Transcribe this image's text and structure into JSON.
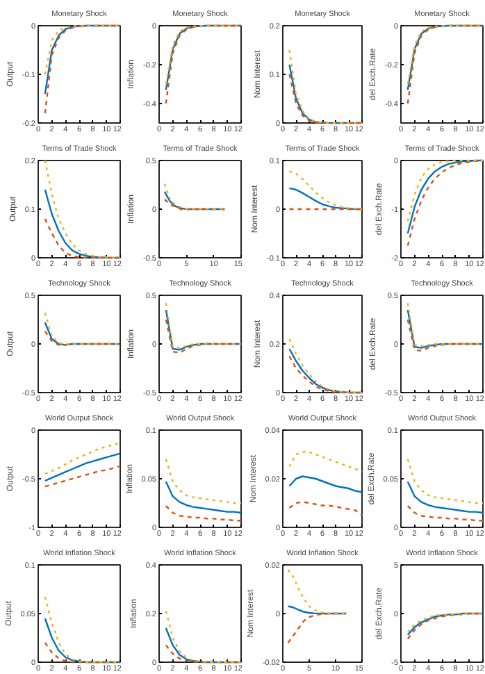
{
  "chart_data": [
    {
      "type": "line",
      "title": "Monetary Shock",
      "ylabel": "Output",
      "x": [
        1,
        2,
        3,
        4,
        5,
        6,
        7,
        8,
        9,
        10,
        11,
        12
      ],
      "xlim": [
        0,
        12
      ],
      "xticks": [
        0,
        2,
        4,
        6,
        8,
        10,
        12
      ],
      "ylim": [
        -0.2,
        0
      ],
      "yticks": [
        -0.2,
        -0.1,
        0
      ],
      "series": [
        {
          "color": "#0072bd",
          "line_style": "solid",
          "values": [
            -0.14,
            -0.05,
            -0.02,
            -0.007,
            -0.002,
            -0.001,
            0,
            0,
            0,
            0,
            0,
            0
          ]
        },
        {
          "color": "#d95319",
          "line_style": "dashed",
          "values": [
            -0.18,
            -0.06,
            -0.025,
            -0.01,
            -0.004,
            -0.001,
            0,
            0,
            0,
            0,
            0,
            0
          ]
        },
        {
          "color": "#edb120",
          "line_style": "dashed",
          "values": [
            -0.1,
            -0.03,
            -0.01,
            -0.003,
            -0.001,
            0,
            0,
            0,
            0,
            0,
            0,
            0
          ]
        }
      ]
    },
    {
      "type": "line",
      "title": "Monetary Shock",
      "ylabel": "Inflation",
      "x": [
        1,
        2,
        3,
        4,
        5,
        6,
        7,
        8,
        9,
        10,
        11,
        12
      ],
      "xlim": [
        0,
        12
      ],
      "xticks": [
        0,
        2,
        4,
        6,
        8,
        10,
        12
      ],
      "ylim": [
        -0.5,
        0
      ],
      "yticks": [
        -0.4,
        -0.2,
        0
      ],
      "series": [
        {
          "color": "#0072bd",
          "line_style": "solid",
          "values": [
            -0.33,
            -0.12,
            -0.04,
            -0.015,
            -0.005,
            -0.002,
            0,
            0,
            0,
            0,
            0,
            0
          ]
        },
        {
          "color": "#d95319",
          "line_style": "dashed",
          "values": [
            -0.4,
            -0.14,
            -0.05,
            -0.02,
            -0.007,
            -0.002,
            0,
            0,
            0,
            0,
            0,
            0
          ]
        },
        {
          "color": "#edb120",
          "line_style": "dashed",
          "values": [
            -0.3,
            -0.1,
            -0.03,
            -0.01,
            -0.003,
            -0.001,
            0,
            0,
            0,
            0,
            0,
            0
          ]
        }
      ]
    },
    {
      "type": "line",
      "title": "Monetary Shock",
      "ylabel": "Nom Interest",
      "x": [
        1,
        2,
        3,
        4,
        5,
        6,
        7,
        8,
        9,
        10,
        11,
        12
      ],
      "xlim": [
        0,
        12
      ],
      "xticks": [
        0,
        2,
        4,
        6,
        8,
        10,
        12
      ],
      "ylim": [
        0,
        0.2
      ],
      "yticks": [
        0,
        0.1,
        0.2
      ],
      "series": [
        {
          "color": "#0072bd",
          "line_style": "solid",
          "values": [
            0.12,
            0.05,
            0.02,
            0.007,
            0.002,
            0.001,
            0,
            0,
            0,
            0,
            0,
            0
          ]
        },
        {
          "color": "#d95319",
          "line_style": "dashed",
          "values": [
            0.1,
            0.04,
            0.015,
            0.005,
            0.001,
            0,
            0,
            0,
            0,
            0,
            0,
            0
          ]
        },
        {
          "color": "#edb120",
          "line_style": "dashed",
          "values": [
            0.15,
            0.06,
            0.025,
            0.008,
            0.003,
            0.001,
            0,
            0,
            0,
            0,
            0,
            0
          ]
        }
      ]
    },
    {
      "type": "line",
      "title": "Monetary Shock",
      "ylabel": "del Exch.Rate",
      "x": [
        1,
        2,
        3,
        4,
        5,
        6,
        7,
        8,
        9,
        10,
        11,
        12
      ],
      "xlim": [
        0,
        12
      ],
      "xticks": [
        0,
        2,
        4,
        6,
        8,
        10,
        12
      ],
      "ylim": [
        -0.5,
        0
      ],
      "yticks": [
        -0.4,
        -0.2,
        0
      ],
      "series": [
        {
          "color": "#0072bd",
          "line_style": "solid",
          "values": [
            -0.33,
            -0.12,
            -0.04,
            -0.015,
            -0.005,
            -0.002,
            0,
            0,
            0,
            0,
            0,
            0
          ]
        },
        {
          "color": "#d95319",
          "line_style": "dashed",
          "values": [
            -0.4,
            -0.14,
            -0.05,
            -0.02,
            -0.007,
            -0.002,
            0,
            0,
            0,
            0,
            0,
            0
          ]
        },
        {
          "color": "#edb120",
          "line_style": "dashed",
          "values": [
            -0.3,
            -0.1,
            -0.03,
            -0.01,
            -0.003,
            -0.001,
            0,
            0,
            0,
            0,
            0,
            0
          ]
        }
      ]
    },
    {
      "type": "line",
      "title": "Terms of Trade Shock",
      "ylabel": "Output",
      "x": [
        1,
        2,
        3,
        4,
        5,
        6,
        7,
        8,
        9,
        10,
        11,
        12
      ],
      "xlim": [
        0,
        12
      ],
      "xticks": [
        0,
        2,
        4,
        6,
        8,
        10,
        12
      ],
      "ylim": [
        0,
        0.2
      ],
      "yticks": [
        0,
        0.1,
        0.2
      ],
      "series": [
        {
          "color": "#0072bd",
          "line_style": "solid",
          "values": [
            0.14,
            0.09,
            0.055,
            0.03,
            0.015,
            0.008,
            0.004,
            0.002,
            0.001,
            0,
            0,
            0
          ]
        },
        {
          "color": "#d95319",
          "line_style": "dashed",
          "values": [
            0.08,
            0.05,
            0.025,
            0.01,
            0.004,
            0.001,
            0,
            0,
            0,
            0,
            0,
            0
          ]
        },
        {
          "color": "#edb120",
          "line_style": "dashed",
          "values": [
            0.2,
            0.13,
            0.08,
            0.05,
            0.028,
            0.015,
            0.008,
            0.004,
            0.002,
            0.001,
            0,
            0
          ]
        }
      ]
    },
    {
      "type": "line",
      "title": "Terms of Trade Shock",
      "ylabel": "Inflation",
      "x": [
        1,
        2,
        3,
        4,
        5,
        6,
        7,
        8,
        9,
        10,
        11,
        12
      ],
      "xlim": [
        0,
        15
      ],
      "xticks": [
        0,
        5,
        10,
        15
      ],
      "ylim": [
        -0.5,
        0.5
      ],
      "yticks": [
        -0.5,
        0,
        0.5
      ],
      "series": [
        {
          "color": "#0072bd",
          "line_style": "solid",
          "values": [
            0.18,
            0.08,
            0.03,
            0.01,
            0,
            0,
            0,
            0,
            0,
            0,
            0,
            0
          ]
        },
        {
          "color": "#d95319",
          "line_style": "dashed",
          "values": [
            0.1,
            0.05,
            0.02,
            0,
            0,
            0,
            0,
            0,
            0,
            0,
            0,
            0
          ]
        },
        {
          "color": "#edb120",
          "line_style": "dashed",
          "values": [
            0.26,
            0.1,
            0.04,
            0.02,
            0,
            0,
            0,
            0,
            0,
            0,
            0,
            0
          ]
        }
      ]
    },
    {
      "type": "line",
      "title": "Terms of Trade Shock",
      "ylabel": "Nom Interest",
      "x": [
        1,
        2,
        3,
        4,
        5,
        6,
        7,
        8,
        9,
        10,
        11,
        12
      ],
      "xlim": [
        0,
        12
      ],
      "xticks": [
        0,
        2,
        4,
        6,
        8,
        10,
        12
      ],
      "ylim": [
        -0.1,
        0.1
      ],
      "yticks": [
        -0.1,
        0,
        0.1
      ],
      "series": [
        {
          "color": "#0072bd",
          "line_style": "solid",
          "values": [
            0.043,
            0.04,
            0.033,
            0.025,
            0.017,
            0.01,
            0.006,
            0.003,
            0.002,
            0.001,
            0,
            0
          ]
        },
        {
          "color": "#d95319",
          "line_style": "dashed",
          "values": [
            0,
            0,
            0,
            0,
            0,
            0,
            0,
            0,
            0,
            0,
            0,
            0
          ]
        },
        {
          "color": "#edb120",
          "line_style": "dashed",
          "values": [
            0.078,
            0.073,
            0.062,
            0.048,
            0.034,
            0.023,
            0.014,
            0.008,
            0.004,
            0.002,
            0.001,
            0
          ]
        }
      ]
    },
    {
      "type": "line",
      "title": "Terms of Trade Shock",
      "ylabel": "del Exch.Rate",
      "x": [
        1,
        2,
        3,
        4,
        5,
        6,
        7,
        8,
        9,
        10,
        11,
        12
      ],
      "xlim": [
        0,
        12
      ],
      "xticks": [
        0,
        2,
        4,
        6,
        8,
        10,
        12
      ],
      "ylim": [
        -2,
        0
      ],
      "yticks": [
        -2,
        -1,
        0
      ],
      "series": [
        {
          "color": "#0072bd",
          "line_style": "solid",
          "values": [
            -1.5,
            -0.95,
            -0.6,
            -0.37,
            -0.22,
            -0.13,
            -0.07,
            -0.04,
            -0.02,
            -0.01,
            0,
            0
          ]
        },
        {
          "color": "#d95319",
          "line_style": "dashed",
          "values": [
            -1.75,
            -1.2,
            -0.82,
            -0.55,
            -0.37,
            -0.24,
            -0.15,
            -0.09,
            -0.05,
            -0.03,
            -0.01,
            0
          ]
        },
        {
          "color": "#edb120",
          "line_style": "dashed",
          "values": [
            -1.25,
            -0.7,
            -0.35,
            -0.17,
            -0.08,
            -0.03,
            -0.01,
            0,
            0,
            0,
            0,
            0
          ]
        }
      ]
    },
    {
      "type": "line",
      "title": "Technology Shock",
      "ylabel": "Output",
      "x": [
        1,
        2,
        3,
        4,
        5,
        6,
        7,
        8,
        9,
        10,
        11,
        12
      ],
      "xlim": [
        0,
        12
      ],
      "xticks": [
        0,
        2,
        4,
        6,
        8,
        10,
        12
      ],
      "ylim": [
        -0.5,
        0.5
      ],
      "yticks": [
        -0.5,
        0,
        0.5
      ],
      "series": [
        {
          "color": "#0072bd",
          "line_style": "solid",
          "values": [
            0.22,
            0.05,
            0,
            -0.01,
            0,
            0,
            0,
            0,
            0,
            0,
            0,
            0
          ]
        },
        {
          "color": "#d95319",
          "line_style": "dashed",
          "values": [
            0.13,
            0.03,
            -0.01,
            -0.01,
            0,
            0,
            0,
            0,
            0,
            0,
            0,
            0
          ]
        },
        {
          "color": "#edb120",
          "line_style": "dashed",
          "values": [
            0.32,
            0.08,
            0.01,
            0,
            0,
            0,
            0,
            0,
            0,
            0,
            0,
            0
          ]
        }
      ]
    },
    {
      "type": "line",
      "title": "Technology Shock",
      "ylabel": "Inflation",
      "x": [
        1,
        2,
        3,
        4,
        5,
        6,
        7,
        8,
        9,
        10,
        11,
        12
      ],
      "xlim": [
        0,
        12
      ],
      "xticks": [
        0,
        2,
        4,
        6,
        8,
        10,
        12
      ],
      "ylim": [
        -0.5,
        0.5
      ],
      "yticks": [
        -0.5,
        0,
        0.5
      ],
      "series": [
        {
          "color": "#0072bd",
          "line_style": "solid",
          "values": [
            0.35,
            -0.05,
            -0.06,
            -0.03,
            -0.01,
            0,
            0,
            0,
            0,
            0,
            0,
            0
          ]
        },
        {
          "color": "#d95319",
          "line_style": "dashed",
          "values": [
            0.25,
            -0.08,
            -0.09,
            -0.05,
            -0.02,
            -0.01,
            0,
            0,
            0,
            0,
            0,
            0
          ]
        },
        {
          "color": "#edb120",
          "line_style": "dashed",
          "values": [
            0.42,
            -0.03,
            -0.04,
            -0.02,
            0,
            0,
            0,
            0,
            0,
            0,
            0,
            0
          ]
        }
      ]
    },
    {
      "type": "line",
      "title": "Technology Shock",
      "ylabel": "Nom Interest",
      "x": [
        1,
        2,
        3,
        4,
        5,
        6,
        7,
        8,
        9,
        10,
        11,
        12
      ],
      "xlim": [
        0,
        12
      ],
      "xticks": [
        0,
        2,
        4,
        6,
        8,
        10,
        12
      ],
      "ylim": [
        0,
        0.4
      ],
      "yticks": [
        0,
        0.2,
        0.4
      ],
      "series": [
        {
          "color": "#0072bd",
          "line_style": "solid",
          "values": [
            0.18,
            0.13,
            0.09,
            0.06,
            0.035,
            0.02,
            0.01,
            0.005,
            0.002,
            0,
            0,
            0
          ]
        },
        {
          "color": "#d95319",
          "line_style": "dashed",
          "values": [
            0.15,
            0.1,
            0.07,
            0.045,
            0.025,
            0.013,
            0.006,
            0.003,
            0.001,
            0,
            0,
            0
          ]
        },
        {
          "color": "#edb120",
          "line_style": "dashed",
          "values": [
            0.22,
            0.16,
            0.11,
            0.075,
            0.045,
            0.025,
            0.013,
            0.006,
            0.003,
            0.001,
            0,
            0
          ]
        }
      ]
    },
    {
      "type": "line",
      "title": "Technology Shock",
      "ylabel": "del Exch.Rate",
      "x": [
        1,
        2,
        3,
        4,
        5,
        6,
        7,
        8,
        9,
        10,
        11,
        12
      ],
      "xlim": [
        0,
        12
      ],
      "xticks": [
        0,
        2,
        4,
        6,
        8,
        10,
        12
      ],
      "ylim": [
        -0.5,
        0.5
      ],
      "yticks": [
        -0.5,
        0,
        0.5
      ],
      "series": [
        {
          "color": "#0072bd",
          "line_style": "solid",
          "values": [
            0.35,
            -0.03,
            -0.04,
            -0.02,
            -0.01,
            0,
            0,
            0,
            0,
            0,
            0,
            0
          ]
        },
        {
          "color": "#d95319",
          "line_style": "dashed",
          "values": [
            0.25,
            -0.06,
            -0.07,
            -0.04,
            -0.02,
            -0.01,
            0,
            0,
            0,
            0,
            0,
            0
          ]
        },
        {
          "color": "#edb120",
          "line_style": "dashed",
          "values": [
            0.42,
            -0.01,
            -0.02,
            -0.01,
            0,
            0,
            0,
            0,
            0,
            0,
            0,
            0
          ]
        }
      ]
    },
    {
      "type": "line",
      "title": "World Output Shock",
      "ylabel": "Output",
      "x": [
        1,
        2,
        3,
        4,
        5,
        6,
        7,
        8,
        9,
        10,
        11,
        12
      ],
      "xlim": [
        0,
        12
      ],
      "xticks": [
        0,
        2,
        4,
        6,
        8,
        10,
        12
      ],
      "ylim": [
        -1,
        0
      ],
      "yticks": [
        -1,
        -0.5,
        0
      ],
      "series": [
        {
          "color": "#0072bd",
          "line_style": "solid",
          "values": [
            -0.52,
            -0.49,
            -0.46,
            -0.43,
            -0.4,
            -0.37,
            -0.34,
            -0.32,
            -0.3,
            -0.28,
            -0.26,
            -0.24
          ]
        },
        {
          "color": "#d95319",
          "line_style": "dashed",
          "values": [
            -0.58,
            -0.56,
            -0.54,
            -0.52,
            -0.5,
            -0.48,
            -0.46,
            -0.44,
            -0.42,
            -0.41,
            -0.39,
            -0.37
          ]
        },
        {
          "color": "#edb120",
          "line_style": "dashed",
          "values": [
            -0.45,
            -0.42,
            -0.39,
            -0.35,
            -0.31,
            -0.28,
            -0.25,
            -0.22,
            -0.19,
            -0.17,
            -0.15,
            -0.13
          ]
        }
      ]
    },
    {
      "type": "line",
      "title": "World Output Shock",
      "ylabel": "Inflation",
      "x": [
        1,
        2,
        3,
        4,
        5,
        6,
        7,
        8,
        9,
        10,
        11,
        12
      ],
      "xlim": [
        0,
        12
      ],
      "xticks": [
        0,
        2,
        4,
        6,
        8,
        10,
        12
      ],
      "ylim": [
        0,
        0.1
      ],
      "yticks": [
        0,
        0.05,
        0.1
      ],
      "series": [
        {
          "color": "#0072bd",
          "line_style": "solid",
          "values": [
            0.047,
            0.032,
            0.026,
            0.023,
            0.021,
            0.02,
            0.019,
            0.018,
            0.017,
            0.016,
            0.016,
            0.015
          ]
        },
        {
          "color": "#d95319",
          "line_style": "dashed",
          "values": [
            0.022,
            0.015,
            0.012,
            0.011,
            0.01,
            0.01,
            0.009,
            0.009,
            0.008,
            0.008,
            0.007,
            0.007
          ]
        },
        {
          "color": "#edb120",
          "line_style": "dashed",
          "values": [
            0.07,
            0.047,
            0.038,
            0.033,
            0.031,
            0.03,
            0.029,
            0.028,
            0.027,
            0.026,
            0.025,
            0.025
          ]
        }
      ]
    },
    {
      "type": "line",
      "title": "World Output Shock",
      "ylabel": "Nom Interest",
      "x": [
        1,
        2,
        3,
        4,
        5,
        6,
        7,
        8,
        9,
        10,
        11,
        12
      ],
      "xlim": [
        0,
        12
      ],
      "xticks": [
        0,
        2,
        4,
        6,
        8,
        10,
        12
      ],
      "ylim": [
        0,
        0.04
      ],
      "yticks": [
        0,
        0.02,
        0.04
      ],
      "series": [
        {
          "color": "#0072bd",
          "line_style": "solid",
          "values": [
            0.017,
            0.02,
            0.021,
            0.0205,
            0.02,
            0.019,
            0.018,
            0.017,
            0.0165,
            0.016,
            0.015,
            0.0145
          ]
        },
        {
          "color": "#d95319",
          "line_style": "dashed",
          "values": [
            0.008,
            0.01,
            0.0105,
            0.01,
            0.0095,
            0.009,
            0.009,
            0.0085,
            0.008,
            0.0075,
            0.007,
            0.005
          ]
        },
        {
          "color": "#edb120",
          "line_style": "dashed",
          "values": [
            0.025,
            0.03,
            0.031,
            0.031,
            0.03,
            0.029,
            0.028,
            0.027,
            0.026,
            0.025,
            0.024,
            0.023
          ]
        }
      ]
    },
    {
      "type": "line",
      "title": "World Output Shock",
      "ylabel": "del Exch.Rate",
      "x": [
        1,
        2,
        3,
        4,
        5,
        6,
        7,
        8,
        9,
        10,
        11,
        12
      ],
      "xlim": [
        0,
        12
      ],
      "xticks": [
        0,
        2,
        4,
        6,
        8,
        10,
        12
      ],
      "ylim": [
        0,
        0.1
      ],
      "yticks": [
        0,
        0.05,
        0.1
      ],
      "series": [
        {
          "color": "#0072bd",
          "line_style": "solid",
          "values": [
            0.047,
            0.032,
            0.026,
            0.023,
            0.021,
            0.02,
            0.019,
            0.018,
            0.017,
            0.016,
            0.016,
            0.015
          ]
        },
        {
          "color": "#d95319",
          "line_style": "dashed",
          "values": [
            0.022,
            0.015,
            0.012,
            0.011,
            0.01,
            0.01,
            0.009,
            0.009,
            0.008,
            0.008,
            0.007,
            0.007
          ]
        },
        {
          "color": "#edb120",
          "line_style": "dashed",
          "values": [
            0.07,
            0.047,
            0.038,
            0.033,
            0.031,
            0.03,
            0.029,
            0.028,
            0.027,
            0.026,
            0.025,
            0.025
          ]
        }
      ]
    },
    {
      "type": "line",
      "title": "World Inflation Shock",
      "ylabel": "Output",
      "x": [
        1,
        2,
        3,
        4,
        5,
        6,
        7,
        8,
        9,
        10,
        11,
        12
      ],
      "xlim": [
        0,
        12
      ],
      "xticks": [
        0,
        2,
        4,
        6,
        8,
        10,
        12
      ],
      "ylim": [
        0,
        0.1
      ],
      "yticks": [
        0,
        0.05,
        0.1
      ],
      "series": [
        {
          "color": "#0072bd",
          "line_style": "solid",
          "values": [
            0.045,
            0.025,
            0.012,
            0.005,
            0.002,
            0.001,
            0,
            0,
            0,
            0,
            0,
            0
          ]
        },
        {
          "color": "#d95319",
          "line_style": "dashed",
          "values": [
            0.02,
            0.01,
            0.004,
            0.001,
            0,
            0,
            0,
            0,
            0,
            0,
            0,
            0
          ]
        },
        {
          "color": "#edb120",
          "line_style": "dashed",
          "values": [
            0.067,
            0.04,
            0.02,
            0.008,
            0.003,
            0.001,
            0,
            0,
            0,
            0,
            0,
            0
          ]
        }
      ]
    },
    {
      "type": "line",
      "title": "World Inflation Shock",
      "ylabel": "Inflation",
      "x": [
        1,
        2,
        3,
        4,
        5,
        6,
        7,
        8,
        9,
        10,
        11,
        12
      ],
      "xlim": [
        0,
        12
      ],
      "xticks": [
        0,
        2,
        4,
        6,
        8,
        10,
        12
      ],
      "ylim": [
        0,
        0.4
      ],
      "yticks": [
        0,
        0.2,
        0.4
      ],
      "series": [
        {
          "color": "#0072bd",
          "line_style": "solid",
          "values": [
            0.14,
            0.07,
            0.03,
            0.012,
            0.005,
            0.002,
            0,
            0,
            0,
            0,
            0,
            0
          ]
        },
        {
          "color": "#d95319",
          "line_style": "dashed",
          "values": [
            0.07,
            0.035,
            0.015,
            0.005,
            0.002,
            0,
            0,
            0,
            0,
            0,
            0,
            0
          ]
        },
        {
          "color": "#edb120",
          "line_style": "dashed",
          "values": [
            0.21,
            0.1,
            0.045,
            0.018,
            0.007,
            0.003,
            0.001,
            0,
            0,
            0,
            0,
            0
          ]
        }
      ]
    },
    {
      "type": "line",
      "title": "World Inflation Shock",
      "ylabel": "Nom Interest",
      "x": [
        1,
        2,
        3,
        4,
        5,
        6,
        7,
        8,
        9,
        10,
        11,
        12
      ],
      "xlim": [
        0,
        15
      ],
      "xticks": [
        0,
        5,
        10,
        15
      ],
      "ylim": [
        -0.02,
        0.02
      ],
      "yticks": [
        -0.02,
        0,
        0.02
      ],
      "series": [
        {
          "color": "#0072bd",
          "line_style": "solid",
          "values": [
            0.003,
            0.0025,
            0.0015,
            0.0007,
            0.0003,
            0.0001,
            0,
            0,
            0,
            0,
            0,
            0
          ]
        },
        {
          "color": "#d95319",
          "line_style": "dashed",
          "values": [
            -0.012,
            -0.009,
            -0.006,
            -0.003,
            -0.0015,
            -0.0007,
            -0.0003,
            -0.0001,
            0,
            0,
            0,
            0
          ]
        },
        {
          "color": "#edb120",
          "line_style": "dashed",
          "values": [
            0.018,
            0.015,
            0.01,
            0.006,
            0.003,
            0.0015,
            0.0006,
            0.0002,
            0,
            0,
            0,
            0
          ]
        }
      ]
    },
    {
      "type": "line",
      "title": "World Inflation Shock",
      "ylabel": "del Exch.Rate",
      "x": [
        1,
        2,
        3,
        4,
        5,
        6,
        7,
        8,
        9,
        10,
        11,
        12
      ],
      "xlim": [
        0,
        12
      ],
      "xticks": [
        0,
        2,
        4,
        6,
        8,
        10,
        12
      ],
      "ylim": [
        -5,
        5
      ],
      "yticks": [
        -5,
        0,
        5
      ],
      "series": [
        {
          "color": "#0072bd",
          "line_style": "solid",
          "values": [
            -2.2,
            -1.4,
            -0.9,
            -0.6,
            -0.3,
            -0.2,
            -0.1,
            -0.1,
            0,
            0,
            0,
            0
          ]
        },
        {
          "color": "#d95319",
          "line_style": "dashed",
          "values": [
            -2.6,
            -1.7,
            -1.1,
            -0.7,
            -0.5,
            -0.3,
            -0.2,
            -0.1,
            -0.1,
            0,
            0,
            0
          ]
        },
        {
          "color": "#edb120",
          "line_style": "dashed",
          "values": [
            -1.9,
            -1.1,
            -0.7,
            -0.4,
            -0.2,
            -0.1,
            -0.1,
            0,
            0,
            0,
            0,
            0
          ]
        }
      ]
    }
  ]
}
